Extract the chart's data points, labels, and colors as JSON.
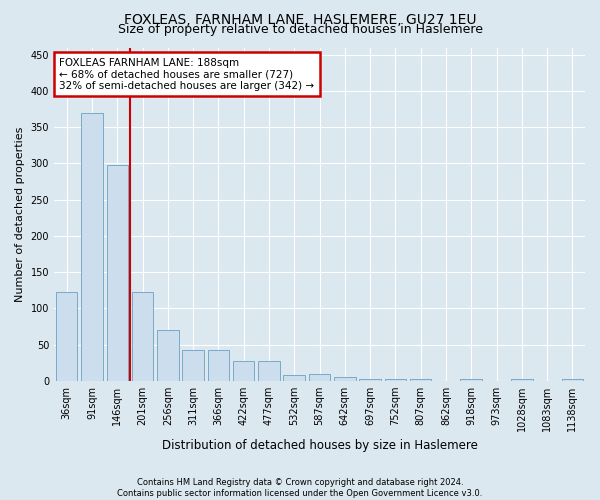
{
  "title": "FOXLEAS, FARNHAM LANE, HASLEMERE, GU27 1EU",
  "subtitle": "Size of property relative to detached houses in Haslemere",
  "xlabel": "Distribution of detached houses by size in Haslemere",
  "ylabel": "Number of detached properties",
  "bar_color": "#ccdded",
  "bar_edge_color": "#7aaac8",
  "background_color": "#dce8f0",
  "plot_bg_color": "#dce8f0",
  "grid_color": "#ffffff",
  "categories": [
    "36sqm",
    "91sqm",
    "146sqm",
    "201sqm",
    "256sqm",
    "311sqm",
    "366sqm",
    "422sqm",
    "477sqm",
    "532sqm",
    "587sqm",
    "642sqm",
    "697sqm",
    "752sqm",
    "807sqm",
    "862sqm",
    "918sqm",
    "973sqm",
    "1028sqm",
    "1083sqm",
    "1138sqm"
  ],
  "values": [
    122,
    370,
    298,
    122,
    70,
    42,
    42,
    28,
    28,
    8,
    10,
    5,
    3,
    3,
    3,
    0,
    2,
    0,
    3,
    0,
    3
  ],
  "vline_x": 2.5,
  "vline_color": "#cc0000",
  "annotation_line1": "FOXLEAS FARNHAM LANE: 188sqm",
  "annotation_line2": "← 68% of detached houses are smaller (727)",
  "annotation_line3": "32% of semi-detached houses are larger (342) →",
  "annotation_box_color": "#ffffff",
  "annotation_box_edge_color": "#cc0000",
  "ylim": [
    0,
    460
  ],
  "yticks": [
    0,
    50,
    100,
    150,
    200,
    250,
    300,
    350,
    400,
    450
  ],
  "footer": "Contains HM Land Registry data © Crown copyright and database right 2024.\nContains public sector information licensed under the Open Government Licence v3.0.",
  "title_fontsize": 10,
  "subtitle_fontsize": 9,
  "tick_label_fontsize": 7,
  "ylabel_fontsize": 8,
  "xlabel_fontsize": 8.5
}
